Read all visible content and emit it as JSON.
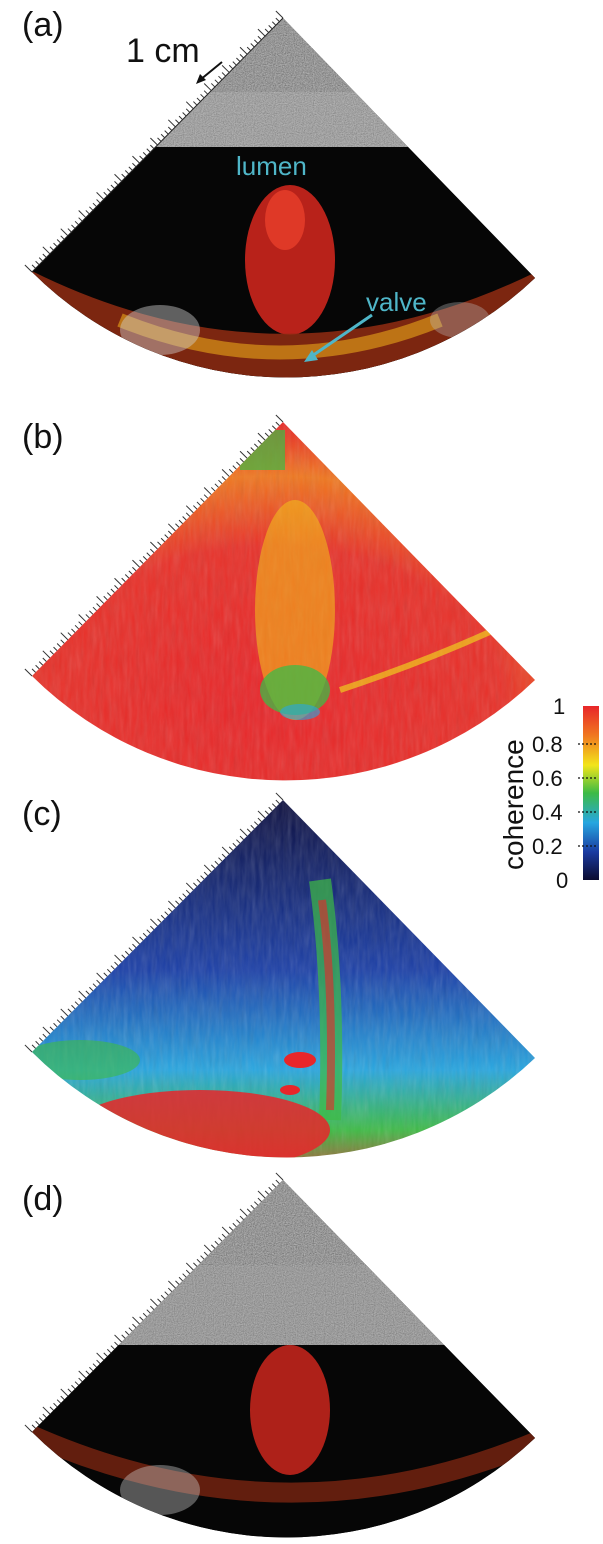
{
  "panels": [
    {
      "label": "(a)"
    },
    {
      "label": "(b)"
    },
    {
      "label": "(c)"
    },
    {
      "label": "(d)"
    }
  ],
  "annotations": {
    "scale_bar": "1 cm",
    "lumen": "lumen",
    "valve": "valve"
  },
  "colorbar": {
    "title": "coherence",
    "ticks": [
      "1",
      "0.8",
      "0.6",
      "0.4",
      "0.2",
      "0"
    ],
    "colors": [
      "#0b0b30",
      "#1a3aa0",
      "#27a6e0",
      "#3dbb45",
      "#f2e51a",
      "#f07820",
      "#e8262a"
    ]
  }
}
